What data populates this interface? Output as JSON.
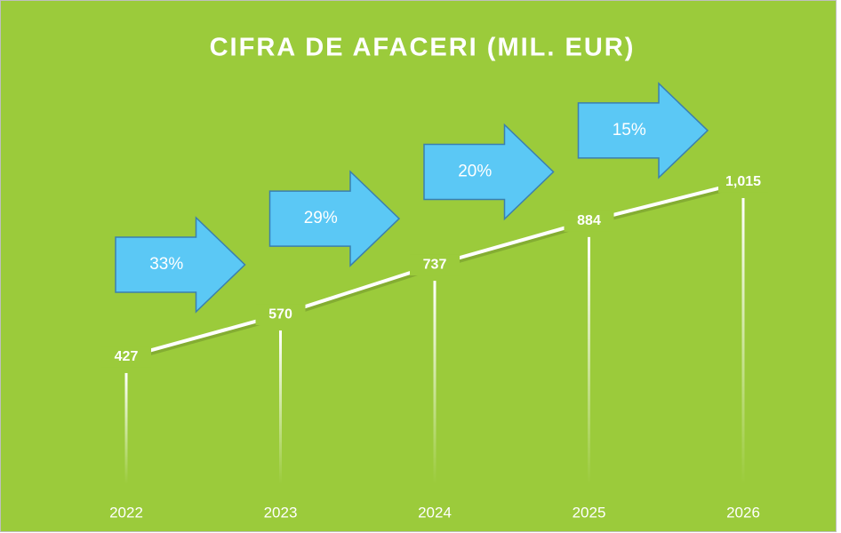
{
  "chart_data": {
    "type": "line",
    "title": "CIFRA DE AFACERI (MIL. EUR)",
    "categories": [
      "2022",
      "2023",
      "2024",
      "2025",
      "2026"
    ],
    "values": [
      427,
      570,
      737,
      884,
      1015
    ],
    "value_labels": [
      "427",
      "570",
      "737",
      "884",
      "1,015"
    ],
    "color": "#ffffff",
    "ylim": [
      0,
      1200
    ],
    "annotations": [
      "33%",
      "29%",
      "20%",
      "15%"
    ]
  }
}
